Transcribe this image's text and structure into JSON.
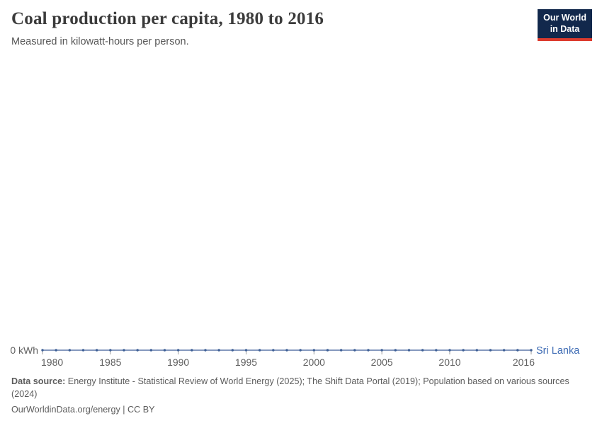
{
  "header": {
    "title": "Coal production per capita, 1980 to 2016",
    "subtitle": "Measured in kilowatt-hours per person.",
    "logo": {
      "line1": "Our World",
      "line2": "in Data"
    }
  },
  "chart_data": {
    "type": "line",
    "title": "Coal production per capita, 1980 to 2016",
    "subtitle": "Measured in kilowatt-hours per person.",
    "unit": "kilowatt-hours per person",
    "xlabel": "",
    "ylabel": "",
    "x_range": [
      1980,
      2016
    ],
    "x_ticks": [
      1980,
      1985,
      1990,
      1995,
      2000,
      2005,
      2010,
      2016
    ],
    "y_ticks": [
      {
        "value": 0,
        "label": "0 kWh"
      }
    ],
    "grid": false,
    "legend_position": "end-of-line",
    "series": [
      {
        "name": "Sri Lanka",
        "x": [
          1980,
          1981,
          1982,
          1983,
          1984,
          1985,
          1986,
          1987,
          1988,
          1989,
          1990,
          1991,
          1992,
          1993,
          1994,
          1995,
          1996,
          1997,
          1998,
          1999,
          2000,
          2001,
          2002,
          2003,
          2004,
          2005,
          2006,
          2007,
          2008,
          2009,
          2010,
          2011,
          2012,
          2013,
          2014,
          2015,
          2016
        ],
        "values": [
          0,
          0,
          0,
          0,
          0,
          0,
          0,
          0,
          0,
          0,
          0,
          0,
          0,
          0,
          0,
          0,
          0,
          0,
          0,
          0,
          0,
          0,
          0,
          0,
          0,
          0,
          0,
          0,
          0,
          0,
          0,
          0,
          0,
          0,
          0,
          0,
          0
        ]
      }
    ]
  },
  "colors": {
    "line": "#5d77a8",
    "marker": "#3e6096",
    "entity_label": "#3d6bb4",
    "axis_text": "#5f5f5f",
    "tick_mark": "#9a9a9a",
    "logo_bg": "#12284c",
    "logo_accent": "#dc3b2e"
  },
  "footer": {
    "source_label": "Data source:",
    "source_text": "Energy Institute - Statistical Review of World Energy (2025); The Shift Data Portal (2019); Population based on various sources (2024)",
    "url_text": "OurWorldinData.org/energy",
    "license_text": " | CC BY"
  }
}
